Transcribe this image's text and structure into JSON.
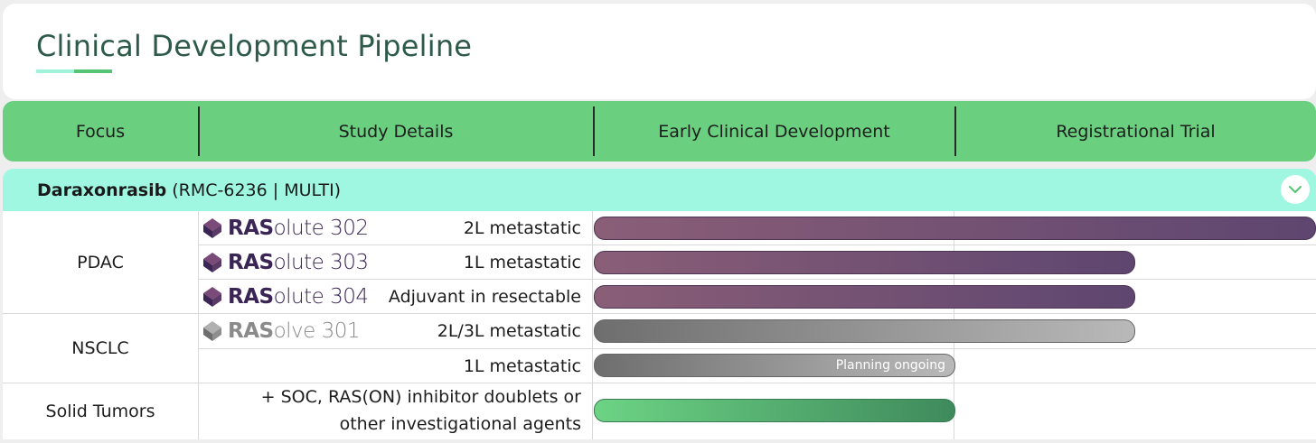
{
  "page": {
    "title": "Clinical Development Pipeline"
  },
  "header": {
    "columns": [
      "Focus",
      "Study Details",
      "Early Clinical Development",
      "Registrational Trial"
    ]
  },
  "drug": {
    "name": "Daraxonrasib",
    "code": "(RMC-6236 | MULTI)"
  },
  "groups": {
    "pdac": "PDAC",
    "nsclc": "NSCLC",
    "solid": "Solid Tumors"
  },
  "rows": [
    {
      "brand_bold": "RAS",
      "brand_light": "olute 302",
      "detail": "2L metastatic",
      "style": "purple",
      "progress": 1.0
    },
    {
      "brand_bold": "RAS",
      "brand_light": "olute 303",
      "detail": "1L metastatic",
      "style": "purple",
      "progress": 0.75
    },
    {
      "brand_bold": "RAS",
      "brand_light": "olute 304",
      "detail": "Adjuvant in resectable",
      "style": "purple",
      "progress": 0.75
    },
    {
      "brand_bold": "RAS",
      "brand_light": "olve 301",
      "detail": "2L/3L metastatic",
      "style": "grey",
      "progress": 0.75
    },
    {
      "brand_bold": "",
      "brand_light": "",
      "detail": "1L metastatic",
      "style": "grey",
      "progress": 0.5,
      "bar_label": "Planning ongoing"
    },
    {
      "detail_line1": "+ SOC, RAS(ON) inhibitor doublets or",
      "detail_line2": "other investigational agents",
      "style": "green",
      "progress": 0.5
    }
  ],
  "colors": {
    "accent_green": "#6bcf80",
    "drug_band": "#9ff7e1",
    "title_color": "#2e5a4a",
    "purple_bar": "#5e4670",
    "grey_bar": "#8a8a8a"
  },
  "icons": {
    "collapse": "chevron-down-icon",
    "logo": "diamond-logo-icon"
  }
}
